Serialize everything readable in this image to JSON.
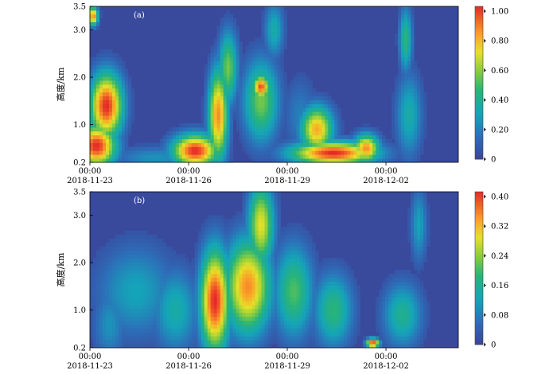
{
  "chart_data": [
    {
      "panel_label": "(a)",
      "type": "heatmap",
      "ylabel": "高度/km",
      "yticks": [
        "0.2",
        "1.0",
        "2.0",
        "3.0",
        "3.5"
      ],
      "ylim": [
        0.2,
        3.5
      ],
      "xtick_times": [
        "00:00",
        "00:00",
        "00:00",
        "00:00"
      ],
      "xtick_dates": [
        "2018-11-23",
        "2018-11-26",
        "2018-11-29",
        "2018-12-02"
      ],
      "colorbar": {
        "ticks": [
          "1.00",
          "0.80",
          "0.60",
          "0.40",
          "0.20",
          "0"
        ],
        "range": [
          0,
          1.0
        ]
      },
      "blobs": [
        {
          "t": 0.2,
          "h": 0.55,
          "w": 0.6,
          "hh": 0.45,
          "v": 1.0
        },
        {
          "t": 0.5,
          "h": 1.4,
          "w": 0.5,
          "hh": 0.7,
          "v": 1.0
        },
        {
          "t": 0.1,
          "h": 3.3,
          "w": 0.15,
          "hh": 0.2,
          "v": 0.9
        },
        {
          "t": 3.2,
          "h": 0.45,
          "w": 0.7,
          "hh": 0.35,
          "v": 1.0
        },
        {
          "t": 3.9,
          "h": 1.2,
          "w": 0.3,
          "hh": 1.0,
          "v": 0.85
        },
        {
          "t": 4.2,
          "h": 2.2,
          "w": 0.3,
          "hh": 0.8,
          "v": 0.55
        },
        {
          "t": 5.2,
          "h": 1.5,
          "w": 0.55,
          "hh": 0.9,
          "v": 0.55
        },
        {
          "t": 5.2,
          "h": 1.8,
          "w": 0.25,
          "hh": 0.25,
          "v": 0.95
        },
        {
          "t": 5.6,
          "h": 3.0,
          "w": 0.3,
          "hh": 0.6,
          "v": 0.35
        },
        {
          "t": 6.9,
          "h": 0.9,
          "w": 0.5,
          "hh": 0.5,
          "v": 0.8
        },
        {
          "t": 7.4,
          "h": 0.4,
          "w": 1.3,
          "hh": 0.25,
          "v": 1.0
        },
        {
          "t": 8.4,
          "h": 0.5,
          "w": 0.4,
          "hh": 0.3,
          "v": 0.85
        },
        {
          "t": 9.6,
          "h": 2.8,
          "w": 0.2,
          "hh": 0.7,
          "v": 0.45
        },
        {
          "t": 9.7,
          "h": 1.2,
          "w": 0.4,
          "hh": 0.9,
          "v": 0.35
        },
        {
          "t": 2.0,
          "h": 0.3,
          "w": 1.3,
          "hh": 0.25,
          "v": 0.25
        },
        {
          "t": 6.4,
          "h": 1.2,
          "w": 0.5,
          "hh": 0.8,
          "v": 0.2
        }
      ]
    },
    {
      "panel_label": "(b)",
      "type": "heatmap",
      "ylabel": "高度/km",
      "yticks": [
        "0.2",
        "1.0",
        "2.0",
        "3.0",
        "3.5"
      ],
      "ylim": [
        0.2,
        3.5
      ],
      "xtick_times": [
        "00:00",
        "00:00",
        "00:00",
        "00:00"
      ],
      "xtick_dates": [
        "2018-11-23",
        "2018-11-26",
        "2018-11-29",
        "2018-12-02"
      ],
      "colorbar": {
        "ticks": [
          "0.40",
          "0.32",
          "0.24",
          "0.16",
          "0.08",
          "0"
        ],
        "range": [
          0,
          0.4
        ]
      },
      "blobs": [
        {
          "t": 3.8,
          "h": 1.2,
          "w": 0.45,
          "hh": 1.1,
          "v": 0.4
        },
        {
          "t": 4.8,
          "h": 1.5,
          "w": 0.7,
          "hh": 1.0,
          "v": 0.34
        },
        {
          "t": 5.2,
          "h": 2.8,
          "w": 0.4,
          "hh": 0.9,
          "v": 0.28
        },
        {
          "t": 1.4,
          "h": 1.4,
          "w": 1.2,
          "hh": 1.0,
          "v": 0.12
        },
        {
          "t": 0.6,
          "h": 0.7,
          "w": 0.5,
          "hh": 0.8,
          "v": 0.1
        },
        {
          "t": 2.6,
          "h": 1.0,
          "w": 0.7,
          "hh": 0.9,
          "v": 0.14
        },
        {
          "t": 6.2,
          "h": 1.4,
          "w": 0.6,
          "hh": 1.0,
          "v": 0.2
        },
        {
          "t": 7.4,
          "h": 1.0,
          "w": 0.6,
          "hh": 0.8,
          "v": 0.18
        },
        {
          "t": 9.5,
          "h": 0.9,
          "w": 0.6,
          "hh": 0.7,
          "v": 0.16
        },
        {
          "t": 10.0,
          "h": 2.8,
          "w": 0.25,
          "hh": 0.8,
          "v": 0.12
        },
        {
          "t": 8.6,
          "h": 0.3,
          "w": 0.2,
          "hh": 0.1,
          "v": 0.4
        }
      ]
    }
  ]
}
